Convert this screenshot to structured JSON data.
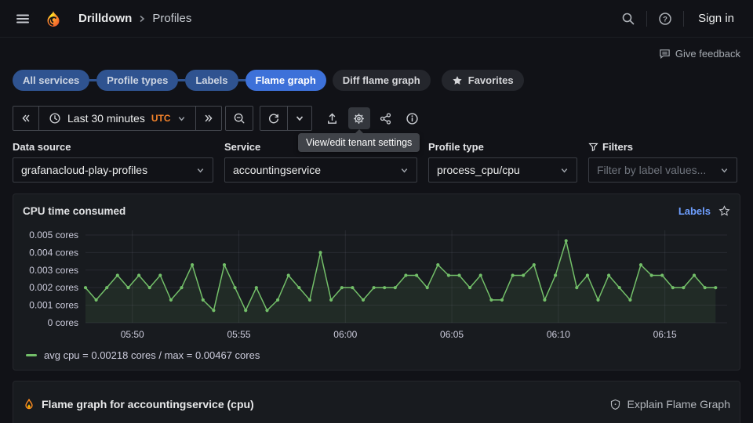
{
  "colors": {
    "accent_blue": "#3D71D9",
    "muted_blue_pill": "#2F5390",
    "link_blue": "#6E9FFF",
    "series_green": "#73BF69",
    "utc_orange": "#F5832A"
  },
  "nav": {
    "breadcrumb_1": "Drilldown",
    "breadcrumb_2": "Profiles",
    "sign_in": "Sign in"
  },
  "feedback_label": "Give feedback",
  "tabs": {
    "all_services": "All services",
    "profile_types": "Profile types",
    "labels": "Labels",
    "flame_graph": "Flame graph",
    "diff_flame_graph": "Diff flame graph",
    "favorites": "Favorites"
  },
  "toolbar": {
    "time_range": "Last 30 minutes",
    "timezone": "UTC",
    "tooltip": "View/edit tenant settings"
  },
  "fields": {
    "datasource": {
      "label": "Data source",
      "value": "grafanacloud-play-profiles"
    },
    "service": {
      "label": "Service",
      "value": "accountingservice"
    },
    "profile_type": {
      "label": "Profile type",
      "value": "process_cpu/cpu"
    },
    "filters": {
      "label": "Filters",
      "placeholder": "Filter by label values..."
    }
  },
  "panel": {
    "title": "CPU time consumed",
    "labels_link": "Labels",
    "legend": "avg cpu = 0.00218 cores / max = 0.00467 cores"
  },
  "flame_panel": {
    "title": "Flame graph for accountingservice (cpu)",
    "action": "Explain Flame Graph"
  },
  "chart_data": {
    "type": "line",
    "title": "CPU time consumed",
    "xlabel": "",
    "ylabel": "cores",
    "y_unit": "cores",
    "ylim": [
      0,
      0.005
    ],
    "grid": true,
    "legend_position": "bottom",
    "y_ticks": [
      0,
      0.001,
      0.002,
      0.003,
      0.004,
      0.005
    ],
    "x_ticks": [
      {
        "label": "05:50",
        "f": 0.073
      },
      {
        "label": "05:55",
        "f": 0.239
      },
      {
        "label": "06:00",
        "f": 0.405
      },
      {
        "label": "06:05",
        "f": 0.571
      },
      {
        "label": "06:10",
        "f": 0.737
      },
      {
        "label": "06:15",
        "f": 0.903
      }
    ],
    "data_span_f": 0.982,
    "stats": {
      "avg": 0.00218,
      "max": 0.00467
    },
    "series": [
      {
        "name": "avg cpu = 0.00218 cores / max = 0.00467 cores",
        "color": "#73BF69",
        "values": [
          0.002,
          0.0013,
          0.002,
          0.0027,
          0.002,
          0.0027,
          0.002,
          0.0027,
          0.0013,
          0.002,
          0.0033,
          0.0013,
          0.0007,
          0.0033,
          0.002,
          0.0007,
          0.002,
          0.0007,
          0.0013,
          0.0027,
          0.002,
          0.0013,
          0.004,
          0.0013,
          0.002,
          0.002,
          0.0013,
          0.002,
          0.002,
          0.002,
          0.0027,
          0.0027,
          0.002,
          0.0033,
          0.0027,
          0.0027,
          0.002,
          0.0027,
          0.0013,
          0.0013,
          0.0027,
          0.0027,
          0.0033,
          0.0013,
          0.0027,
          0.00467,
          0.002,
          0.0027,
          0.0013,
          0.0027,
          0.002,
          0.0013,
          0.0033,
          0.0027,
          0.0027,
          0.002,
          0.002,
          0.0027,
          0.002,
          0.002
        ]
      }
    ]
  }
}
